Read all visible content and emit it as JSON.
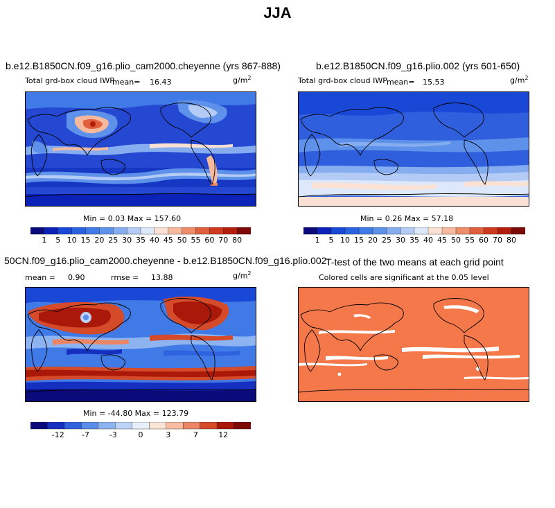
{
  "title": "JJA",
  "colors": {
    "cmap_abs": [
      "#0a0a7a",
      "#0b22b8",
      "#1a48d6",
      "#2a62e0",
      "#3f7ae6",
      "#5d91ea",
      "#86adf0",
      "#b3cbf5",
      "#dde8fa",
      "#fbe1d4",
      "#f6b99e",
      "#ee8b68",
      "#e0603e",
      "#ce3a1e",
      "#b31d0c",
      "#7d0a06"
    ],
    "cmap_diff": [
      "#0a0a7a",
      "#1530c0",
      "#2f62df",
      "#5b8eea",
      "#8db3f1",
      "#bcd3f7",
      "#e6effb",
      "#fbe3d6",
      "#f6bba0",
      "#ec8564",
      "#d54a28",
      "#a91808",
      "#7d0a06"
    ],
    "ttest": "#f4784a"
  },
  "panels": [
    {
      "id": "p1",
      "title": "b.e12.B1850CN.f09_g16.plio_cam2000.cheyenne (yrs 867-888)",
      "variable": "Total grd-box cloud IWP",
      "mean_label": "mean=",
      "mean": "16.43",
      "units_base": "g/m",
      "units_exp": "2",
      "minmax": "Min =   0.03 Max = 157.60",
      "colorbar_labels": [
        "1",
        "5",
        "10",
        "15",
        "20",
        "25",
        "30",
        "35",
        "40",
        "45",
        "50",
        "55",
        "60",
        "70",
        "80"
      ]
    },
    {
      "id": "p2",
      "title": "b.e12.B1850CN.f09_g16.plio.002 (yrs 601-650)",
      "variable": "Total grd-box cloud IWP",
      "mean_label": "mean=",
      "mean": "15.53",
      "units_base": "g/m",
      "units_exp": "2",
      "minmax": "Min =   0.26 Max =  57.18",
      "colorbar_labels": [
        "1",
        "5",
        "10",
        "15",
        "20",
        "25",
        "30",
        "35",
        "40",
        "45",
        "50",
        "55",
        "60",
        "70",
        "80"
      ]
    },
    {
      "id": "p3",
      "title": "50CN.f09_g16.plio_cam2000.cheyenne - b.e12.B1850CN.f09_g16.plio.002",
      "mean_label": "mean =",
      "mean": "0.90",
      "rmse_label": "rmse =",
      "rmse": "13.88",
      "units_base": "g/m",
      "units_exp": "2",
      "minmax": "Min = -44.80 Max = 123.79",
      "colorbar_labels": [
        "-12",
        "-7",
        "-3",
        "0",
        "3",
        "7",
        "12"
      ]
    },
    {
      "id": "p4",
      "title": "T-test of the two means at each grid point",
      "subtitle": "Colored cells are significant at the 0.05 level"
    }
  ],
  "chart_data": [
    {
      "type": "heatmap",
      "title": "b.e12.B1850CN.f09_g16.plio_cam2000.cheyenne (yrs 867-888)",
      "min": 0.03,
      "max": 157.6,
      "mean": 16.43,
      "levels": [
        1,
        5,
        10,
        15,
        20,
        25,
        30,
        35,
        40,
        45,
        50,
        55,
        60,
        70,
        80
      ]
    },
    {
      "type": "heatmap",
      "title": "b.e12.B1850CN.f09_g16.plio.002 (yrs 601-650)",
      "min": 0.26,
      "max": 57.18,
      "mean": 15.53,
      "levels": [
        1,
        5,
        10,
        15,
        20,
        25,
        30,
        35,
        40,
        45,
        50,
        55,
        60,
        70,
        80
      ]
    },
    {
      "type": "heatmap",
      "title": "50CN.f09_g16.plio_cam2000.cheyenne - b.e12.B1850CN.f09_g16.plio.002",
      "min": -44.8,
      "max": 123.79,
      "mean": 0.9,
      "rmse": 13.88
    },
    {
      "type": "heatmap",
      "title": "T-test of the two means at each grid point"
    }
  ]
}
